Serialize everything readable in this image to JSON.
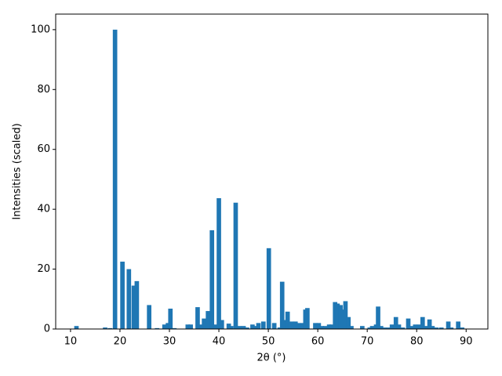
{
  "chart_data": {
    "type": "bar",
    "xlabel": "2θ (°)",
    "ylabel": "Intensities (scaled)",
    "color": "#1f77b4",
    "grid": false,
    "xlim": [
      7,
      94.4
    ],
    "ylim": [
      0,
      105.2
    ],
    "xticks": [
      10,
      20,
      30,
      40,
      50,
      60,
      70,
      80,
      90
    ],
    "yticks": [
      0,
      20,
      40,
      60,
      80,
      100
    ],
    "x": [
      11.2,
      17,
      18,
      19,
      20.5,
      21.8,
      22.8,
      23.4,
      25.9,
      27.5,
      29,
      29.7,
      30.2,
      31,
      33.7,
      34.3,
      35.7,
      36.3,
      37,
      37.8,
      38.6,
      39.4,
      40,
      40.6,
      42,
      42.5,
      43.4,
      44.2,
      45,
      45.7,
      46.8,
      47.5,
      48,
      49,
      50.1,
      51.2,
      52.3,
      52.8,
      53.2,
      53.9,
      54.8,
      55.5,
      56.2,
      57,
      57.5,
      57.9,
      59.5,
      60.2,
      60.8,
      61.5,
      62.3,
      62.8,
      63.5,
      64,
      64.6,
      65,
      65.6,
      66.2,
      66.8,
      69,
      70.5,
      71,
      71.8,
      72.2,
      72.8,
      73.5,
      74.3,
      75,
      75.8,
      76.4,
      77.2,
      78.3,
      78.8,
      79.7,
      80.5,
      81.2,
      81.8,
      82.6,
      83.2,
      84,
      85,
      86.4,
      87,
      88.4,
      89.2
    ],
    "values": [
      1.0,
      0.5,
      0.3,
      100,
      22.5,
      20,
      14.5,
      16,
      8,
      0.3,
      1.5,
      2,
      6.8,
      0.3,
      1.5,
      1.5,
      7.3,
      1.5,
      3.5,
      6,
      33,
      1.5,
      43.7,
      3,
      1.8,
      1,
      42.2,
      1,
      1,
      0.5,
      1.5,
      1,
      2,
      2.5,
      27,
      2,
      0.5,
      15.8,
      3,
      5.8,
      2.5,
      2.5,
      2,
      2,
      6.5,
      7,
      2,
      2,
      1,
      1,
      1.5,
      1.5,
      9,
      8.5,
      8,
      6.5,
      9.3,
      4,
      1,
      1,
      0.5,
      1,
      1.5,
      7.5,
      1,
      0.5,
      0.5,
      1.5,
      4,
      1.5,
      0.5,
      3.5,
      1,
      1.5,
      1.5,
      4,
      1,
      3.2,
      1,
      0.5,
      0.5,
      2.5,
      0.5,
      2.5,
      0.5
    ]
  }
}
